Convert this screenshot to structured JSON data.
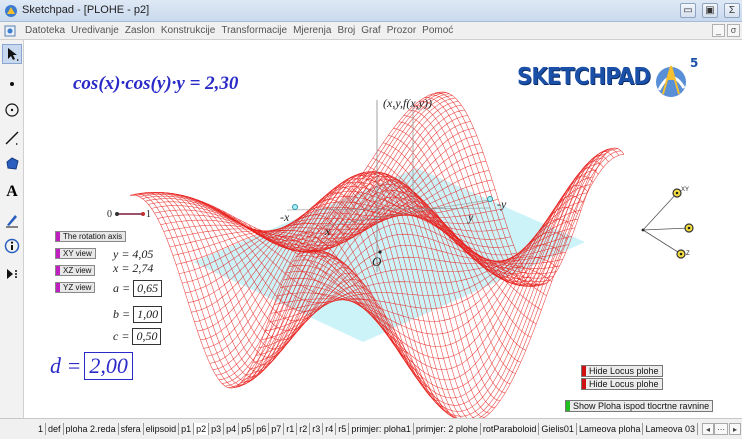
{
  "window": {
    "title": "Sketchpad - [PLOHE - p2]",
    "minimize_glyph": "▭",
    "maximize_glyph": "▣",
    "close_glyph": "Σ"
  },
  "menu": {
    "items": [
      "Datoteka",
      "Uredivanje",
      "Zaslon",
      "Konstrukcije",
      "Transformacije",
      "Mjerenja",
      "Broj",
      "Graf",
      "Prozor",
      "Pomoć"
    ],
    "mdi_minimize": "_",
    "mdi_restore": "σ"
  },
  "toolbox": {
    "tools": [
      {
        "name": "arrow-select-icon"
      },
      {
        "name": "point-tool-icon"
      },
      {
        "name": "compass-tool-icon"
      },
      {
        "name": "straightedge-tool-icon"
      },
      {
        "name": "polygon-tool-icon"
      },
      {
        "name": "text-tool-icon",
        "glyph": "A"
      },
      {
        "name": "marker-tool-icon"
      },
      {
        "name": "information-tool-icon"
      },
      {
        "name": "custom-tool-icon"
      }
    ]
  },
  "canvas": {
    "equation": "cos(x)·cos(y)·y = 2,30",
    "logo": "SKETCHPAD",
    "logo_version": "5",
    "surface_color": "#e8201c",
    "plane_color": "#c5f2f7",
    "labels": {
      "point_xyf": "(x,y,f(x,y))",
      "neg_x": "-x",
      "x": "x",
      "y": "y",
      "neg_y": "-y",
      "origin": "O"
    },
    "slider": {
      "min_label": "0",
      "max_label": "1"
    },
    "rotation_button": "The rotation axis",
    "view_buttons": [
      "XY view",
      "XZ view",
      "YZ view"
    ],
    "values": {
      "y": "y = 4,05",
      "x": "x = 2,74"
    },
    "params": {
      "a_label": "a =",
      "a_value": "0,65",
      "b_label": "b =",
      "b_value": "1,00",
      "c_label": "c =",
      "c_value": "0,50",
      "d_label": "d =",
      "d_value": "2,00"
    },
    "axis_widget_labels": [
      "XY",
      "",
      "Z"
    ],
    "actions": [
      {
        "label": "Hide Locus plohe",
        "color": "#d01010"
      },
      {
        "label": "Hide Locus plohe",
        "color": "#d01010"
      },
      {
        "label": "Show Ploha ispod tlocrtne ravnine",
        "color": "#20c020"
      }
    ]
  },
  "tabs": {
    "items": [
      "1",
      "def",
      "ploha 2.reda",
      "sfera",
      "elipsoid",
      "p1",
      "p2",
      "p3",
      "p4",
      "p5",
      "p6",
      "p7",
      "r1",
      "r2",
      "r3",
      "r4",
      "r5",
      "primjer: ploha1",
      "primjer: 2 plohe",
      "rotParaboloid",
      "Gielis01",
      "Lameova ploha",
      "Lameova 03"
    ],
    "active_index": 6,
    "scroll_left": "◂",
    "scroll_more": "⋯",
    "scroll_right": "▸"
  }
}
